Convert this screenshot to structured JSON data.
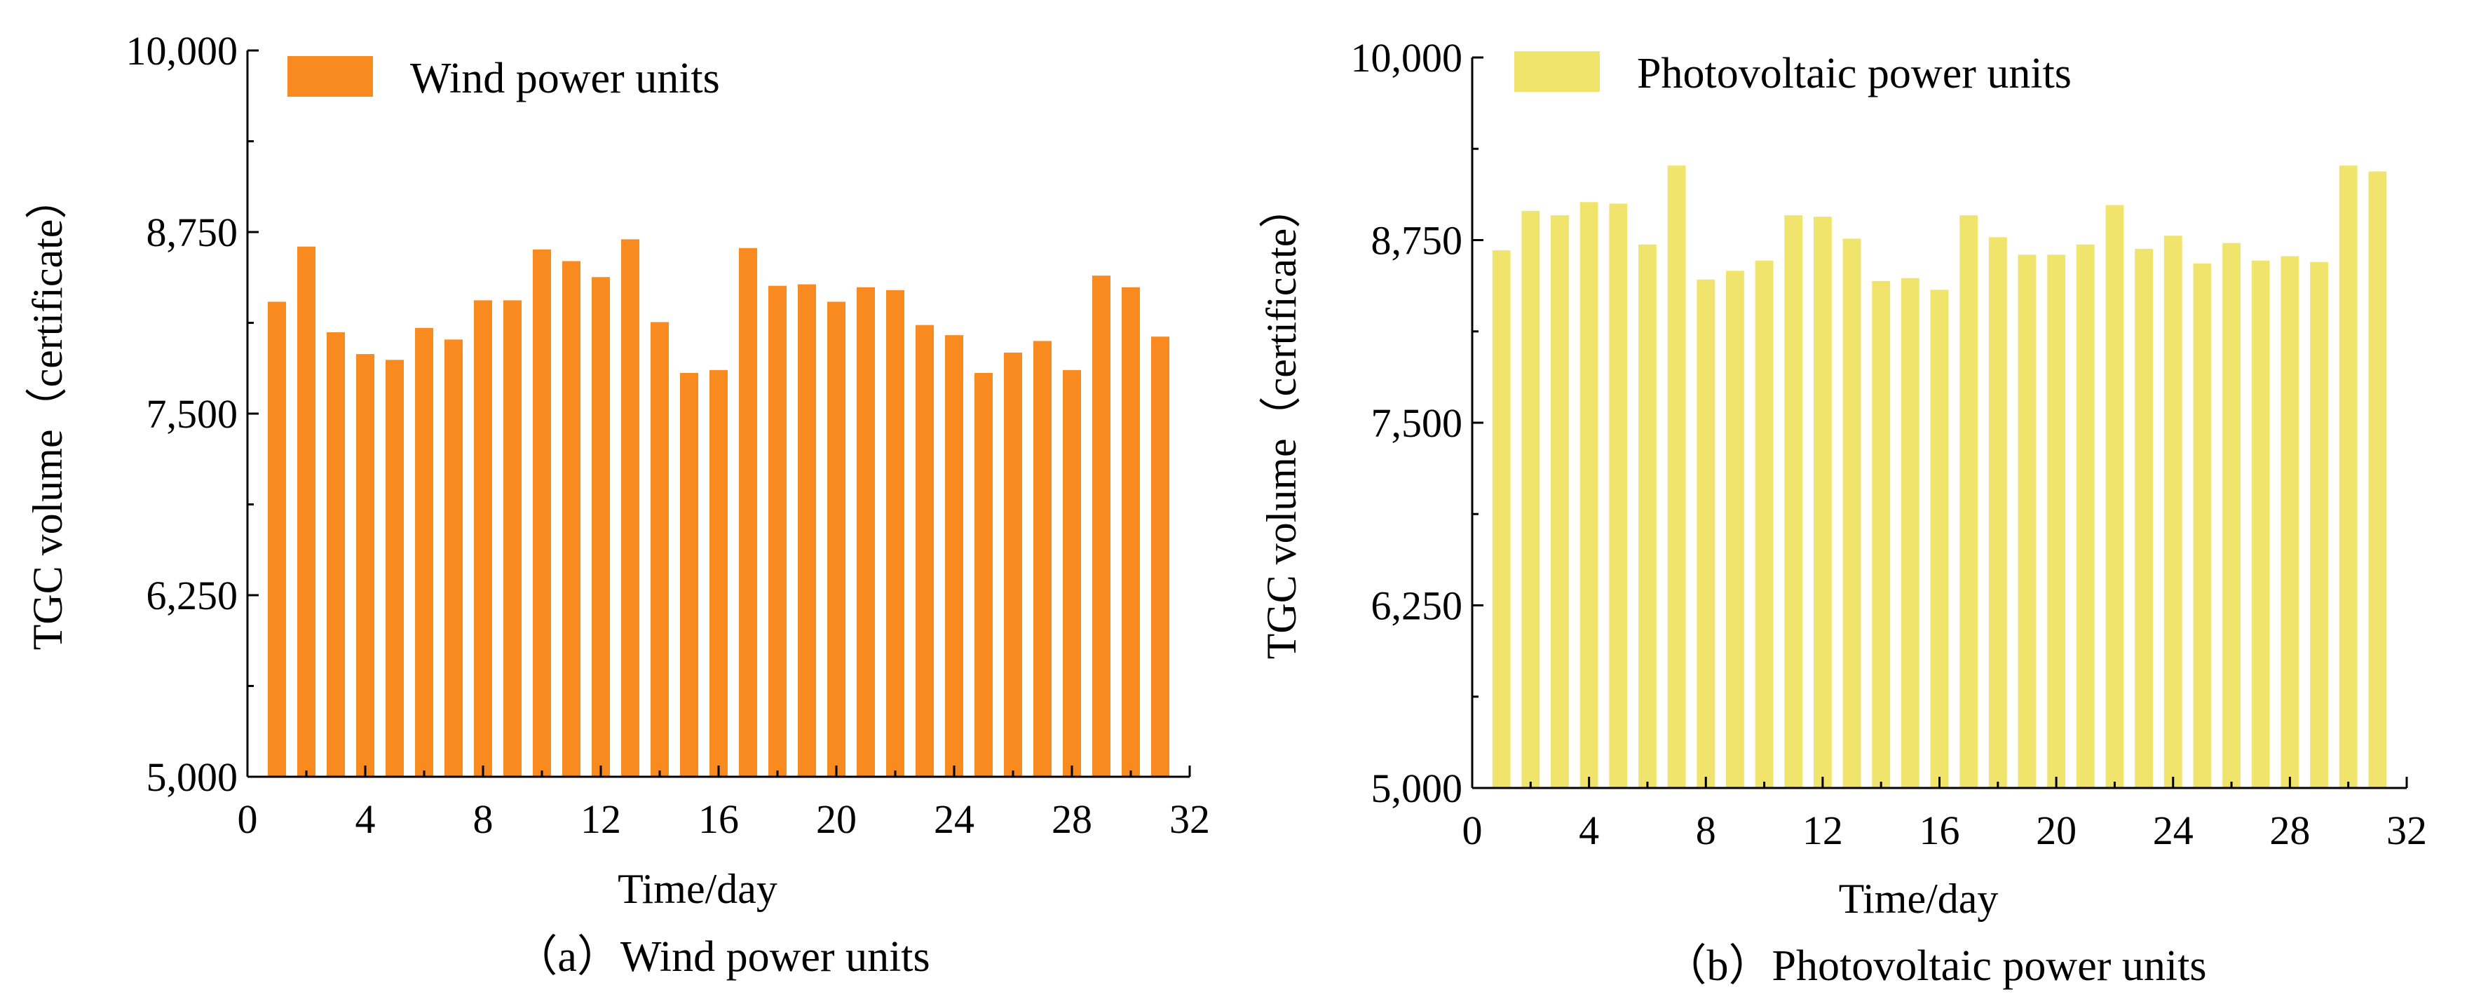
{
  "chart_data": [
    {
      "type": "bar",
      "title": "Wind power units",
      "caption": "（a）Wind power units",
      "xlabel": "Time/day",
      "ylabel": "TGC volume（certificate）",
      "xlim": [
        0,
        32
      ],
      "ylim": [
        5000,
        10000
      ],
      "xticks": [
        "0",
        "4",
        "8",
        "12",
        "16",
        "20",
        "24",
        "28",
        "32"
      ],
      "yticks": [
        "5,000",
        "6,250",
        "7,500",
        "8,750",
        "10,000"
      ],
      "legend": {
        "label": "Wind power units",
        "position": "top-left"
      },
      "color": "#F98A1F",
      "x": [
        1,
        2,
        3,
        4,
        5,
        6,
        7,
        8,
        9,
        10,
        11,
        12,
        13,
        14,
        15,
        16,
        17,
        18,
        19,
        20,
        21,
        22,
        23,
        24,
        25,
        26,
        27,
        28,
        29,
        30,
        31
      ],
      "values": [
        8270,
        8650,
        8060,
        7910,
        7870,
        8090,
        8010,
        8280,
        8280,
        8630,
        8550,
        8440,
        8700,
        8130,
        7780,
        7800,
        8640,
        8380,
        8390,
        8270,
        8370,
        8350,
        8110,
        8040,
        7780,
        7920,
        8000,
        7800,
        8450,
        8370,
        8030
      ]
    },
    {
      "type": "bar",
      "title": "Photovoltaic power units",
      "caption": "（b）Photovoltaic power units",
      "xlabel": "Time/day",
      "ylabel": "TGC volume（certificate）",
      "xlim": [
        0,
        32
      ],
      "ylim": [
        5000,
        10000
      ],
      "xticks": [
        "0",
        "4",
        "8",
        "12",
        "16",
        "20",
        "24",
        "28",
        "32"
      ],
      "yticks": [
        "5,000",
        "6,250",
        "7,500",
        "8,750",
        "10,000"
      ],
      "legend": {
        "label": "Photovoltaic power units",
        "position": "top-left"
      },
      "color": "#F1E46C",
      "x": [
        1,
        2,
        3,
        4,
        5,
        6,
        7,
        8,
        9,
        10,
        11,
        12,
        13,
        14,
        15,
        16,
        17,
        18,
        19,
        20,
        21,
        22,
        23,
        24,
        25,
        26,
        27,
        28,
        29,
        30,
        31
      ],
      "values": [
        8680,
        8950,
        8920,
        9010,
        9000,
        8720,
        9260,
        8480,
        8540,
        8610,
        8920,
        8910,
        8760,
        8470,
        8490,
        8410,
        8920,
        8770,
        8650,
        8650,
        8720,
        8990,
        8690,
        8780,
        8590,
        8730,
        8610,
        8640,
        8600,
        9260,
        9220
      ]
    }
  ]
}
